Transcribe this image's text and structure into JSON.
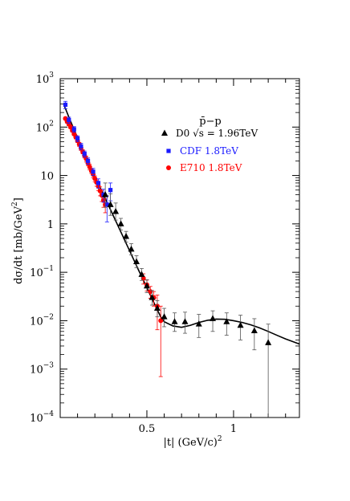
{
  "chart_data": {
    "type": "scatter",
    "xlabel": "|t| (GeV/c)",
    "xlabel_sup": "2",
    "ylabel": "dσ/dt [mb/GeV",
    "ylabel_sup": "2",
    "ylabel_end": "]",
    "y_scale": "log",
    "xlim": [
      0.0,
      1.38
    ],
    "ylim": [
      0.0001,
      1000
    ],
    "x_ticks": [
      {
        "value": 0.5,
        "label": "0.5"
      },
      {
        "value": 1.0,
        "label": "1"
      }
    ],
    "y_ticks": [
      {
        "value": 0.0001,
        "base": "10",
        "exp": "−4"
      },
      {
        "value": 0.001,
        "base": "10",
        "exp": "−3"
      },
      {
        "value": 0.01,
        "base": "10",
        "exp": "−2"
      },
      {
        "value": 0.1,
        "base": "10",
        "exp": "−1"
      },
      {
        "value": 1,
        "base": "1",
        "exp": ""
      },
      {
        "value": 10,
        "base": "10",
        "exp": ""
      },
      {
        "value": 100,
        "base": "10",
        "exp": "2"
      },
      {
        "value": 1000,
        "base": "10",
        "exp": "3"
      }
    ],
    "legend_title": "p̄−p",
    "legend_position": "top-right",
    "series": [
      {
        "name": "D0 √s = 1.96TeV",
        "marker": "triangle",
        "color": "#000000",
        "points": [
          {
            "x": 0.26,
            "y": 4.0,
            "lo": 2.2,
            "hi": 7.0
          },
          {
            "x": 0.29,
            "y": 2.5,
            "lo": 1.5,
            "hi": 4.2
          },
          {
            "x": 0.32,
            "y": 1.8,
            "lo": 1.2,
            "hi": 2.7
          },
          {
            "x": 0.35,
            "y": 1.0,
            "lo": 0.75,
            "hi": 1.3
          },
          {
            "x": 0.38,
            "y": 0.55,
            "lo": 0.42,
            "hi": 0.7
          },
          {
            "x": 0.41,
            "y": 0.3,
            "lo": 0.23,
            "hi": 0.39
          },
          {
            "x": 0.44,
            "y": 0.165,
            "lo": 0.125,
            "hi": 0.22
          },
          {
            "x": 0.47,
            "y": 0.09,
            "lo": 0.068,
            "hi": 0.12
          },
          {
            "x": 0.5,
            "y": 0.052,
            "lo": 0.038,
            "hi": 0.07
          },
          {
            "x": 0.53,
            "y": 0.03,
            "lo": 0.021,
            "hi": 0.042
          },
          {
            "x": 0.56,
            "y": 0.018,
            "lo": 0.012,
            "hi": 0.026
          },
          {
            "x": 0.6,
            "y": 0.012,
            "lo": 0.0075,
            "hi": 0.018
          },
          {
            "x": 0.66,
            "y": 0.0095,
            "lo": 0.006,
            "hi": 0.0145
          },
          {
            "x": 0.72,
            "y": 0.0095,
            "lo": 0.0055,
            "hi": 0.015
          },
          {
            "x": 0.8,
            "y": 0.0085,
            "lo": 0.0045,
            "hi": 0.0135
          },
          {
            "x": 0.88,
            "y": 0.011,
            "lo": 0.006,
            "hi": 0.016
          },
          {
            "x": 0.96,
            "y": 0.0095,
            "lo": 0.005,
            "hi": 0.0145
          },
          {
            "x": 1.04,
            "y": 0.008,
            "lo": 0.004,
            "hi": 0.013
          },
          {
            "x": 1.12,
            "y": 0.0062,
            "lo": 0.0025,
            "hi": 0.011
          },
          {
            "x": 1.2,
            "y": 0.0035,
            "lo": 0.0001,
            "hi": 0.0085
          }
        ]
      },
      {
        "name": "CDF 1.8TeV",
        "marker": "square",
        "color": "#1a1aff",
        "points": [
          {
            "x": 0.03,
            "y": 290,
            "lo": 240,
            "hi": 340
          },
          {
            "x": 0.05,
            "y": 140,
            "lo": 120,
            "hi": 160
          },
          {
            "x": 0.08,
            "y": 90,
            "lo": 78,
            "hi": 102
          },
          {
            "x": 0.1,
            "y": 58,
            "lo": 50,
            "hi": 66
          },
          {
            "x": 0.12,
            "y": 40,
            "lo": 34,
            "hi": 46
          },
          {
            "x": 0.14,
            "y": 28,
            "lo": 24,
            "hi": 32
          },
          {
            "x": 0.16,
            "y": 20,
            "lo": 17,
            "hi": 23
          },
          {
            "x": 0.19,
            "y": 12,
            "lo": 10,
            "hi": 14
          },
          {
            "x": 0.22,
            "y": 7.0,
            "lo": 5.5,
            "hi": 8.5
          },
          {
            "x": 0.25,
            "y": 4.0,
            "lo": 2.8,
            "hi": 5.2
          },
          {
            "x": 0.27,
            "y": 2.5,
            "lo": 1.1,
            "hi": 3.8
          },
          {
            "x": 0.29,
            "y": 5.0,
            "lo": 3.0,
            "hi": 7.0
          }
        ]
      },
      {
        "name": "E710 1.8TeV",
        "marker": "circle",
        "color": "#ff0000",
        "points": [
          {
            "x": 0.03,
            "y": 150,
            "lo": 140,
            "hi": 160
          },
          {
            "x": 0.04,
            "y": 130,
            "lo": 121,
            "hi": 139
          },
          {
            "x": 0.05,
            "y": 115,
            "lo": 107,
            "hi": 123
          },
          {
            "x": 0.06,
            "y": 100,
            "lo": 93,
            "hi": 107
          },
          {
            "x": 0.07,
            "y": 85,
            "lo": 79,
            "hi": 91
          },
          {
            "x": 0.08,
            "y": 72,
            "lo": 67,
            "hi": 77
          },
          {
            "x": 0.09,
            "y": 62,
            "lo": 57,
            "hi": 67
          },
          {
            "x": 0.1,
            "y": 52,
            "lo": 48,
            "hi": 56
          },
          {
            "x": 0.11,
            "y": 44,
            "lo": 40,
            "hi": 48
          },
          {
            "x": 0.12,
            "y": 37,
            "lo": 33,
            "hi": 41
          },
          {
            "x": 0.13,
            "y": 31,
            "lo": 28,
            "hi": 34
          },
          {
            "x": 0.14,
            "y": 26,
            "lo": 23,
            "hi": 29
          },
          {
            "x": 0.15,
            "y": 22,
            "lo": 19,
            "hi": 25
          },
          {
            "x": 0.16,
            "y": 18,
            "lo": 16,
            "hi": 20
          },
          {
            "x": 0.17,
            "y": 15,
            "lo": 13,
            "hi": 17
          },
          {
            "x": 0.18,
            "y": 12.5,
            "lo": 11,
            "hi": 14
          },
          {
            "x": 0.19,
            "y": 10.5,
            "lo": 9,
            "hi": 12
          },
          {
            "x": 0.2,
            "y": 8.6,
            "lo": 7.4,
            "hi": 9.8
          },
          {
            "x": 0.21,
            "y": 7.2,
            "lo": 6,
            "hi": 8.4
          },
          {
            "x": 0.22,
            "y": 6.0,
            "lo": 4.9,
            "hi": 7.1
          },
          {
            "x": 0.23,
            "y": 4.8,
            "lo": 3.8,
            "hi": 5.8
          },
          {
            "x": 0.24,
            "y": 3.9,
            "lo": 2.9,
            "hi": 4.9
          },
          {
            "x": 0.25,
            "y": 3.1,
            "lo": 2.2,
            "hi": 4.0
          },
          {
            "x": 0.26,
            "y": 2.5,
            "lo": 1.7,
            "hi": 3.3
          },
          {
            "x": 0.48,
            "y": 0.075,
            "lo": 0.057,
            "hi": 0.093
          },
          {
            "x": 0.5,
            "y": 0.055,
            "lo": 0.041,
            "hi": 0.069
          },
          {
            "x": 0.52,
            "y": 0.04,
            "lo": 0.029,
            "hi": 0.051
          },
          {
            "x": 0.54,
            "y": 0.03,
            "lo": 0.02,
            "hi": 0.04
          },
          {
            "x": 0.56,
            "y": 0.02,
            "lo": 0.0065,
            "hi": 0.034
          },
          {
            "x": 0.58,
            "y": 0.01,
            "lo": 0.0007,
            "hi": 0.02
          }
        ]
      }
    ],
    "curve": {
      "name": "model",
      "color": "#000000",
      "x": [
        0.02,
        0.05,
        0.1,
        0.15,
        0.2,
        0.25,
        0.3,
        0.35,
        0.4,
        0.45,
        0.5,
        0.55,
        0.58,
        0.6,
        0.65,
        0.7,
        0.75,
        0.8,
        0.85,
        0.9,
        0.95,
        1.0,
        1.05,
        1.1,
        1.15,
        1.2,
        1.25,
        1.3,
        1.38
      ],
      "y": [
        300,
        160,
        60,
        23,
        9.5,
        4.0,
        1.65,
        0.68,
        0.28,
        0.115,
        0.048,
        0.02,
        0.012,
        0.0095,
        0.0078,
        0.0073,
        0.008,
        0.0092,
        0.0102,
        0.0108,
        0.0107,
        0.01,
        0.0092,
        0.0082,
        0.0071,
        0.006,
        0.005,
        0.0042,
        0.0033
      ]
    }
  }
}
